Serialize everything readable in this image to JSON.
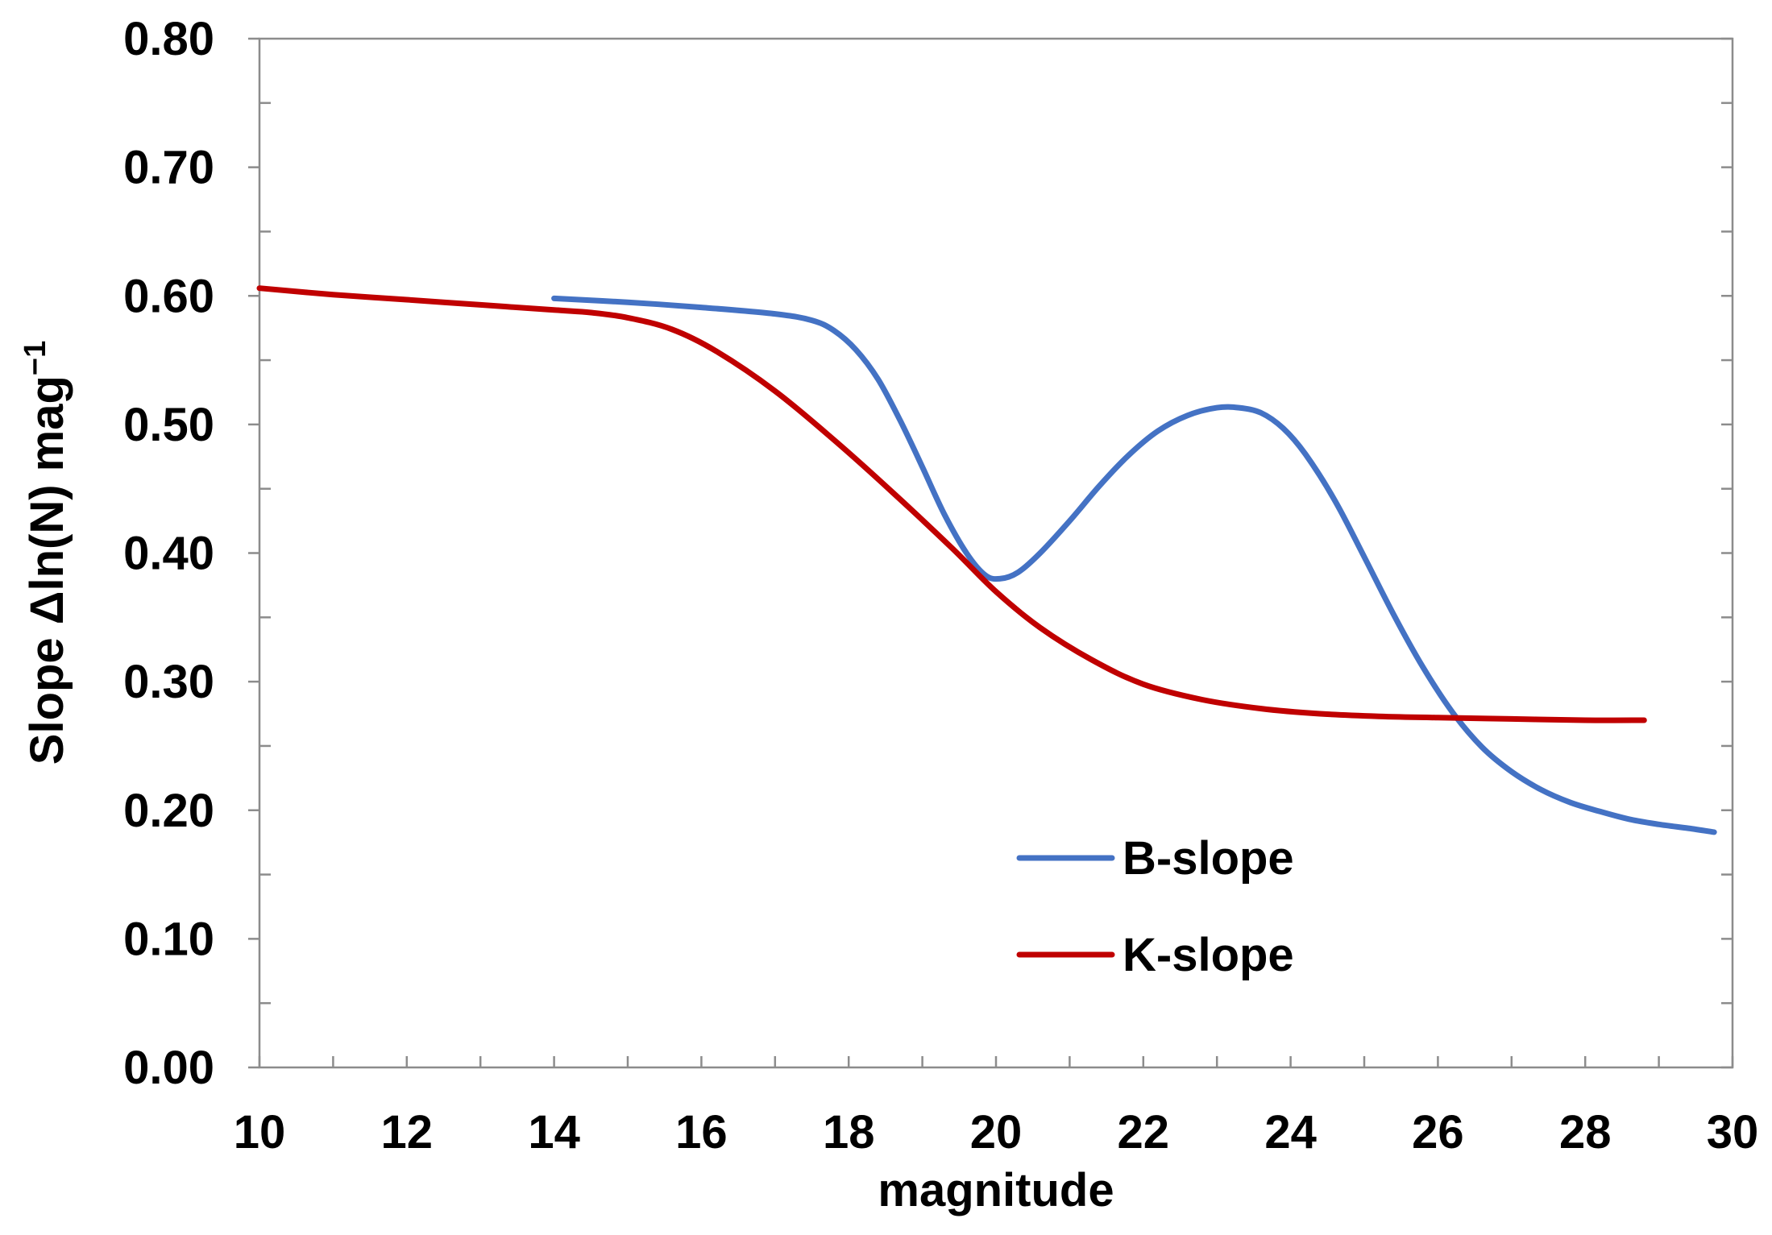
{
  "chart_data": {
    "type": "line",
    "title": "",
    "xlabel": "magnitude",
    "ylabel": "Slope Δln(N) mag",
    "ylabel_superscript": "−1",
    "xlim": [
      10,
      30
    ],
    "ylim": [
      0,
      0.8
    ],
    "x_ticks": [
      "10",
      "12",
      "14",
      "16",
      "18",
      "20",
      "22",
      "24",
      "26",
      "28",
      "30"
    ],
    "y_ticks": [
      "0.00",
      "0.10",
      "0.20",
      "0.30",
      "0.40",
      "0.50",
      "0.60",
      "0.70",
      "0.80"
    ],
    "grid": false,
    "legend_position": "bottom-right",
    "series": [
      {
        "name": "B-slope",
        "color": "#4472C4",
        "x": [
          14,
          15,
          16,
          17,
          17.5,
          17.8,
          18.1,
          18.4,
          18.7,
          19,
          19.3,
          19.6,
          19.85,
          20.05,
          20.3,
          20.6,
          21,
          21.4,
          21.8,
          22.2,
          22.6,
          23,
          23.3,
          23.6,
          23.9,
          24.2,
          24.6,
          25,
          25.4,
          25.8,
          26.2,
          26.6,
          27,
          27.4,
          27.8,
          28.2,
          28.6,
          29,
          29.4,
          29.75
        ],
        "y": [
          0.598,
          0.595,
          0.591,
          0.586,
          0.581,
          0.573,
          0.558,
          0.535,
          0.503,
          0.467,
          0.43,
          0.4,
          0.383,
          0.38,
          0.385,
          0.4,
          0.425,
          0.452,
          0.476,
          0.495,
          0.507,
          0.513,
          0.513,
          0.509,
          0.497,
          0.477,
          0.441,
          0.397,
          0.352,
          0.311,
          0.276,
          0.249,
          0.23,
          0.216,
          0.206,
          0.199,
          0.193,
          0.189,
          0.186,
          0.183
        ]
      },
      {
        "name": "K-slope",
        "color": "#C00000",
        "x": [
          10,
          11,
          12,
          13,
          14,
          14.5,
          15,
          15.6,
          16.2,
          17,
          17.8,
          18.6,
          19.4,
          20,
          20.6,
          21.3,
          22,
          22.8,
          23.6,
          24.4,
          25.2,
          26,
          27,
          28,
          28.8
        ],
        "y": [
          0.606,
          0.601,
          0.597,
          0.593,
          0.589,
          0.587,
          0.583,
          0.574,
          0.557,
          0.526,
          0.488,
          0.447,
          0.404,
          0.37,
          0.342,
          0.317,
          0.298,
          0.286,
          0.279,
          0.275,
          0.273,
          0.272,
          0.271,
          0.27,
          0.27
        ]
      }
    ]
  }
}
